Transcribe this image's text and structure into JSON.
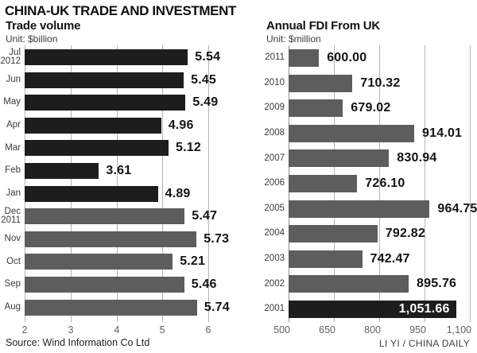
{
  "title": "CHINA-UK TRADE AND INVESTMENT",
  "source": "Source: Wind Information Co Ltd",
  "credit": "LI YI / CHINA DAILY",
  "colors": {
    "bar_dark": "#1d1d1d",
    "bar_mid": "#5d5d5e",
    "gridline": "#b4b4b4",
    "axis_line": "#8f8f8f",
    "value_text": "#141414",
    "value_text_inverse": "#ffffff"
  },
  "chart_data": [
    {
      "type": "bar",
      "orientation": "horizontal",
      "title": "Trade volume",
      "unit_label": "Unit: $billion",
      "categories": [
        [
          "Jul",
          "2012"
        ],
        [
          "Jun"
        ],
        [
          "May"
        ],
        [
          "Apr"
        ],
        [
          "Mar"
        ],
        [
          "Feb"
        ],
        [
          "Jan"
        ],
        [
          "Dec",
          "2011"
        ],
        [
          "Nov"
        ],
        [
          "Oct"
        ],
        [
          "Sep"
        ],
        [
          "Aug"
        ]
      ],
      "values": [
        5.54,
        5.45,
        5.49,
        4.96,
        5.12,
        3.61,
        4.89,
        5.47,
        5.73,
        5.21,
        5.46,
        5.74
      ],
      "value_labels": [
        "5.54",
        "5.45",
        "5.49",
        "4.96",
        "5.12",
        "3.61",
        "4.89",
        "5.47",
        "5.73",
        "5.21",
        "5.46",
        "5.74"
      ],
      "bar_styles": [
        "dark",
        "dark",
        "dark",
        "dark",
        "dark",
        "dark",
        "dark",
        "mid",
        "mid",
        "mid",
        "mid",
        "mid"
      ],
      "value_inside_index": -1,
      "xlim": [
        2,
        6
      ],
      "tick_labels": [
        "2",
        "3",
        "4",
        "5",
        "6"
      ],
      "tick_values": [
        2,
        3,
        4,
        5,
        6
      ],
      "grid": true,
      "legend": false
    },
    {
      "type": "bar",
      "orientation": "horizontal",
      "title": "Annual FDI From UK",
      "unit_label": "Unit: $million",
      "categories": [
        [
          "2011"
        ],
        [
          "2010"
        ],
        [
          "2009"
        ],
        [
          "2008"
        ],
        [
          "2007"
        ],
        [
          "2006"
        ],
        [
          "2005"
        ],
        [
          "2004"
        ],
        [
          "2003"
        ],
        [
          "2002"
        ],
        [
          "2001"
        ]
      ],
      "values": [
        600.0,
        710.32,
        679.02,
        914.01,
        830.94,
        726.1,
        964.75,
        792.82,
        742.47,
        895.76,
        1051.66
      ],
      "value_labels": [
        "600.00",
        "710.32",
        "679.02",
        "914.01",
        "830.94",
        "726.10",
        "964.75",
        "792.82",
        "742.47",
        "895.76",
        "1,051.66"
      ],
      "bar_styles": [
        "mid",
        "mid",
        "mid",
        "mid",
        "mid",
        "mid",
        "mid",
        "mid",
        "mid",
        "mid",
        "dark"
      ],
      "value_inside_index": 10,
      "xlim": [
        500,
        1100
      ],
      "tick_labels": [
        "500",
        "650",
        "800",
        "950",
        "1,100"
      ],
      "tick_values": [
        500,
        650,
        800,
        950,
        1100
      ],
      "grid": true,
      "legend": false
    }
  ]
}
